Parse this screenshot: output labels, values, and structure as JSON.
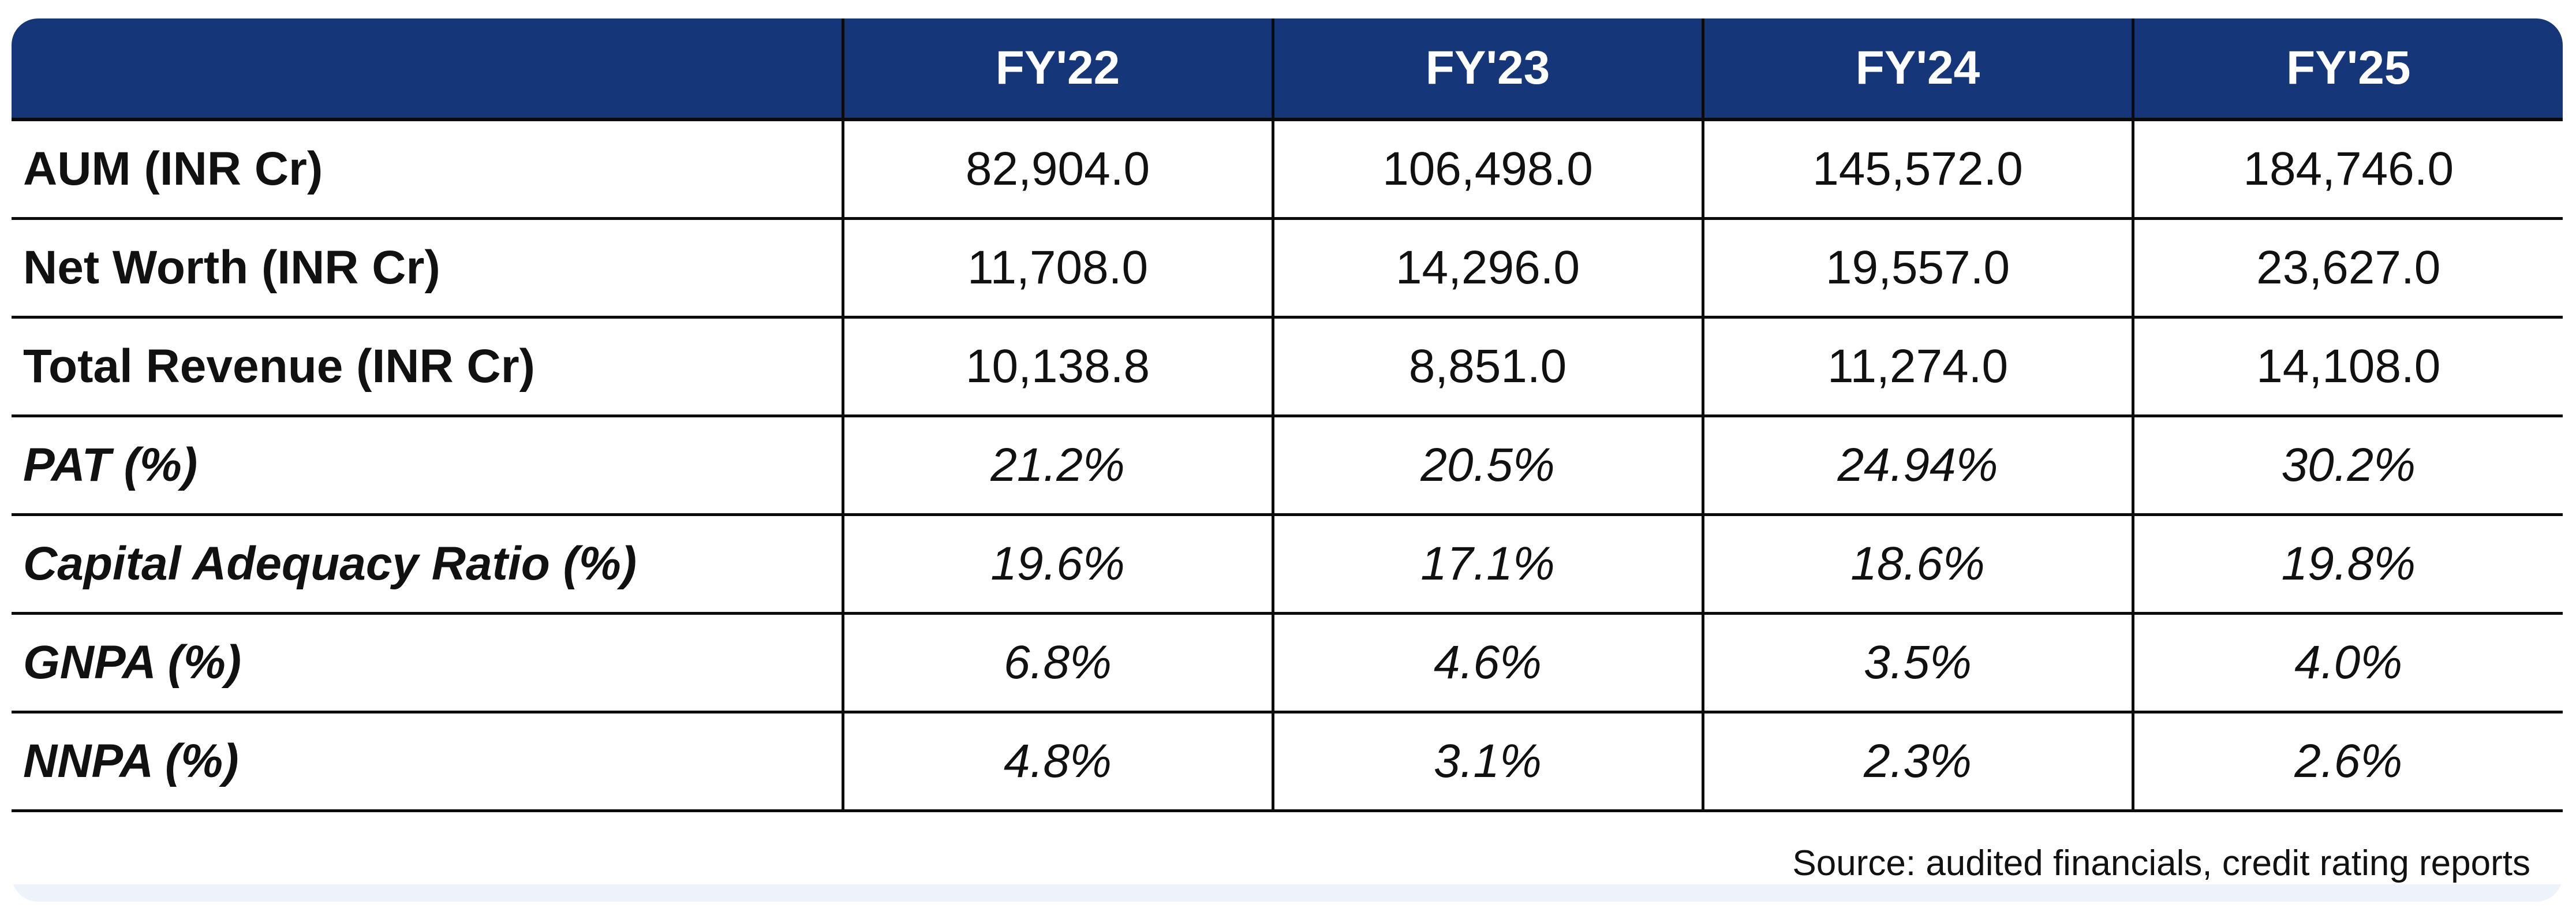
{
  "table": {
    "headers": [
      "",
      "FY'22",
      "FY'23",
      "FY'24",
      "FY'25"
    ],
    "rows": [
      {
        "label": "AUM (INR Cr)",
        "values": [
          "82,904.0",
          "106,498.0",
          "145,572.0",
          "184,746.0"
        ]
      },
      {
        "label": "Net Worth (INR Cr)",
        "values": [
          "11,708.0",
          "14,296.0",
          "19,557.0",
          "23,627.0"
        ]
      },
      {
        "label": "Total Revenue (INR Cr)",
        "values": [
          "10,138.8",
          "8,851.0",
          "11,274.0",
          "14,108.0"
        ]
      },
      {
        "label": "PAT (%)",
        "values": [
          "21.2%",
          "20.5%",
          "24.94%",
          "30.2%"
        ]
      },
      {
        "label": "Capital Adequacy Ratio (%)",
        "values": [
          "19.6%",
          "17.1%",
          "18.6%",
          "19.8%"
        ]
      },
      {
        "label": "GNPA (%)",
        "values": [
          "6.8%",
          "4.6%",
          "3.5%",
          "4.0%"
        ]
      },
      {
        "label": "NNPA (%)",
        "values": [
          "4.8%",
          "3.1%",
          "2.3%",
          "2.6%"
        ]
      }
    ]
  },
  "source": "Source: audited financials, credit rating reports",
  "colors": {
    "header_bg": "#16367a",
    "header_text": "#ffffff",
    "card_bg": "#edf2fb",
    "grid_line": "#0b0b0b"
  }
}
